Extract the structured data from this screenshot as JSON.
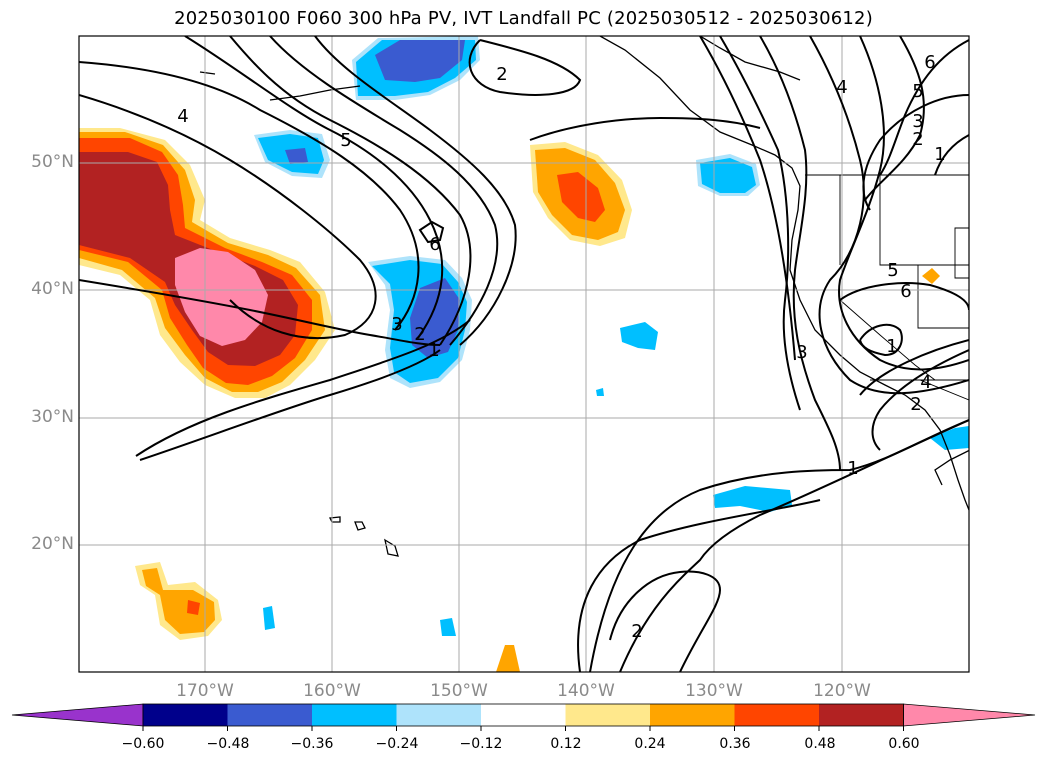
{
  "title": "2025030100 F060 300 hPa PV, IVT Landfall PC (2025030512 - 2025030612)",
  "map": {
    "lat_labels": [
      "50°N",
      "40°N",
      "30°N",
      "20°N"
    ],
    "lon_labels": [
      "170°W",
      "160°W",
      "150°W",
      "140°W",
      "130°W",
      "120°W"
    ],
    "contour_labels": [
      "4",
      "5",
      "6",
      "2",
      "3",
      "2",
      "1",
      "6",
      "4",
      "5",
      "3",
      "2",
      "1",
      "5",
      "6",
      "3",
      "1",
      "4",
      "2",
      "1",
      "2"
    ],
    "grid": true,
    "coastlines": true
  },
  "colorbar": {
    "ticks": [
      "−0.60",
      "−0.48",
      "−0.36",
      "−0.24",
      "−0.12",
      "0.12",
      "0.24",
      "0.36",
      "0.48",
      "0.60"
    ],
    "colors": [
      "#9933cc",
      "#00008b",
      "#3a5bd0",
      "#00bfff",
      "#aee3fb",
      "#ffffff",
      "#ffe88c",
      "#ffa500",
      "#ff4500",
      "#b22222",
      "#ff88aa"
    ],
    "extend": "both"
  }
}
